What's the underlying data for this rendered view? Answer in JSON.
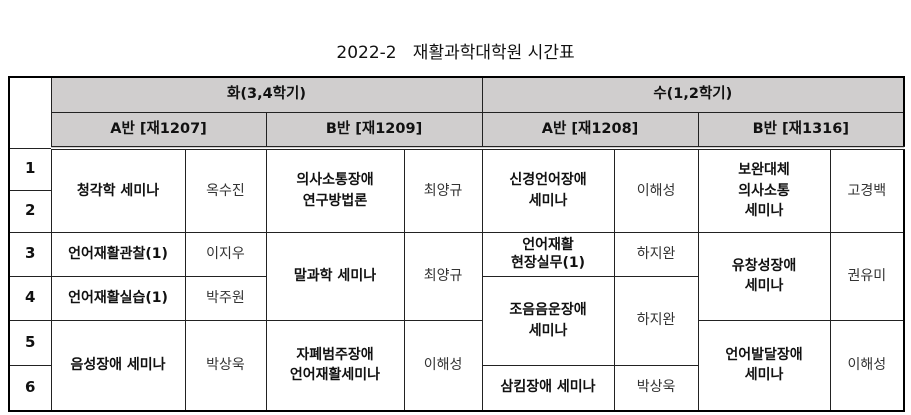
{
  "title": "2022-2   재활과학대학원 시간표",
  "days": [
    {
      "label": "화(3,4학기)",
      "groups": [
        {
          "label": "A반  [재1207]"
        },
        {
          "label": "B반  [재1209]"
        }
      ]
    },
    {
      "label": "수(1,2학기)",
      "groups": [
        {
          "label": "A반  [재1208]"
        },
        {
          "label": "B반  [재1316]"
        }
      ]
    }
  ],
  "periods": [
    "1",
    "2",
    "3",
    "4",
    "5",
    "6"
  ],
  "tue_a": [
    {
      "course": "청각학 세미나",
      "professor": "옥수진",
      "periods": [
        1,
        2
      ]
    },
    {
      "course": "언어재활관찰(1)",
      "professor": "이지우",
      "periods": [
        3
      ]
    },
    {
      "course": "언어재활실습(1)",
      "professor": "박주원",
      "periods": [
        4
      ]
    },
    {
      "course": "음성장애 세미나",
      "professor": "박상욱",
      "periods": [
        5,
        6
      ]
    }
  ],
  "tue_b": [
    {
      "course": "의사소통장애\n연구방법론",
      "professor": "최양규",
      "periods": [
        1,
        2
      ]
    },
    {
      "course": "말과학 세미나",
      "professor": "최양규",
      "periods": [
        3,
        4
      ]
    },
    {
      "course": "자폐범주장애\n언어재활세미나",
      "professor": "이해성",
      "periods": [
        5,
        6
      ]
    }
  ],
  "wed_a": [
    {
      "course": "신경언어장애\n세미나",
      "professor": "이해성",
      "periods": [
        1,
        2
      ]
    },
    {
      "course": "언어재활\n현장실무(1)",
      "professor": "하지완",
      "periods": [
        3
      ]
    },
    {
      "course": "조음음운장애\n세미나",
      "professor": "하지완",
      "periods": [
        4,
        5
      ]
    },
    {
      "course": "삼킴장애 세미나",
      "professor": "박상욱",
      "periods": [
        6
      ]
    }
  ],
  "wed_b": [
    {
      "course": "보완대체\n의사소통\n세미나",
      "professor": "고경백",
      "periods": [
        1,
        2
      ]
    },
    {
      "course": "유창성장애\n세미나",
      "professor": "권유미",
      "periods": [
        3,
        4
      ]
    },
    {
      "course": "언어발달장애\n세미나",
      "professor": "이해성",
      "periods": [
        5,
        6
      ]
    }
  ]
}
